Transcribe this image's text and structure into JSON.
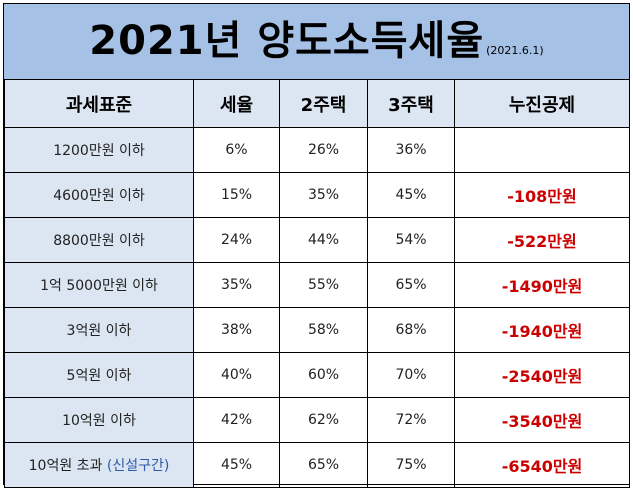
{
  "title": "2021년 양도소득세율",
  "date": "(2021.6.1)",
  "headers": [
    "과세표준",
    "세율",
    "2주택",
    "3주택",
    "누진공제"
  ],
  "rows": [
    {
      "bracket": "1200만원 이하",
      "note": "",
      "rate": "6%",
      "two": "26%",
      "three": "36%",
      "deduction": ""
    },
    {
      "bracket": "4600만원 이하",
      "note": "",
      "rate": "15%",
      "two": "35%",
      "three": "45%",
      "deduction": "-108만원"
    },
    {
      "bracket": "8800만원 이하",
      "note": "",
      "rate": "24%",
      "two": "44%",
      "three": "54%",
      "deduction": "-522만원"
    },
    {
      "bracket": "1억 5000만원 이하",
      "note": "",
      "rate": "35%",
      "two": "55%",
      "three": "65%",
      "deduction": "-1490만원"
    },
    {
      "bracket": "3억원 이하",
      "note": "",
      "rate": "38%",
      "two": "58%",
      "three": "68%",
      "deduction": "-1940만원"
    },
    {
      "bracket": "5억원 이하",
      "note": "",
      "rate": "40%",
      "two": "60%",
      "three": "70%",
      "deduction": "-2540만원"
    },
    {
      "bracket": "10억원 이하",
      "note": "",
      "rate": "42%",
      "two": "62%",
      "three": "72%",
      "deduction": "-3540만원"
    },
    {
      "bracket": "10억원 초과",
      "note": "(신설구간)",
      "rate": "45%",
      "two": "65%",
      "three": "75%",
      "deduction": "-6540만원"
    }
  ],
  "colors": {
    "title_bg": "#a6c1e6",
    "header_bg": "#dce6f2",
    "deduction": "#cc0000",
    "note": "#2f5aa8"
  }
}
